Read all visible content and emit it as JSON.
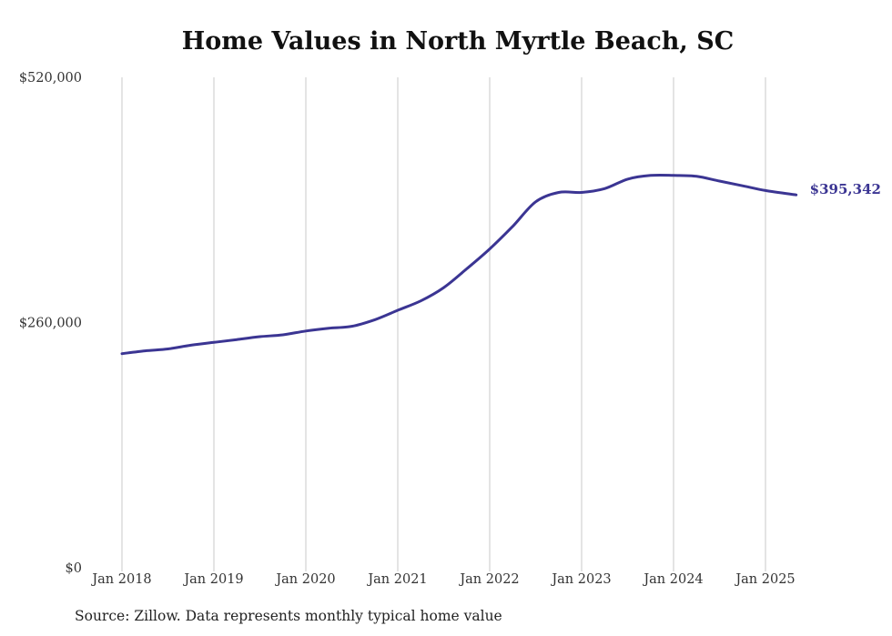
{
  "chart_data": {
    "type": "line",
    "title": "Home Values in North Myrtle Beach, SC",
    "xlabel": "",
    "ylabel": "",
    "ylim": [
      0,
      520000
    ],
    "y_ticks": [
      0,
      260000,
      520000
    ],
    "y_tick_labels": [
      "$0",
      "$260,000",
      "$520,000"
    ],
    "x_ticks": [
      "Jan 2018",
      "Jan 2019",
      "Jan 2020",
      "Jan 2021",
      "Jan 2022",
      "Jan 2023",
      "Jan 2024",
      "Jan 2025"
    ],
    "x_range": [
      "2018-01",
      "2025-05"
    ],
    "grid": {
      "vertical": true,
      "horizontal": false
    },
    "series": [
      {
        "color": "#3b3593",
        "points": [
          {
            "x": "2018-01",
            "y": 227000
          },
          {
            "x": "2018-04",
            "y": 230000
          },
          {
            "x": "2018-07",
            "y": 232000
          },
          {
            "x": "2018-10",
            "y": 236000
          },
          {
            "x": "2019-01",
            "y": 239000
          },
          {
            "x": "2019-04",
            "y": 242000
          },
          {
            "x": "2019-07",
            "y": 245000
          },
          {
            "x": "2019-10",
            "y": 247000
          },
          {
            "x": "2020-01",
            "y": 251000
          },
          {
            "x": "2020-04",
            "y": 254000
          },
          {
            "x": "2020-07",
            "y": 256000
          },
          {
            "x": "2020-10",
            "y": 263000
          },
          {
            "x": "2021-01",
            "y": 273000
          },
          {
            "x": "2021-04",
            "y": 283000
          },
          {
            "x": "2021-07",
            "y": 297000
          },
          {
            "x": "2021-10",
            "y": 317000
          },
          {
            "x": "2022-01",
            "y": 338000
          },
          {
            "x": "2022-04",
            "y": 362000
          },
          {
            "x": "2022-07",
            "y": 388000
          },
          {
            "x": "2022-10",
            "y": 398000
          },
          {
            "x": "2023-01",
            "y": 398000
          },
          {
            "x": "2023-04",
            "y": 402000
          },
          {
            "x": "2023-07",
            "y": 412000
          },
          {
            "x": "2023-10",
            "y": 416000
          },
          {
            "x": "2024-01",
            "y": 416000
          },
          {
            "x": "2024-04",
            "y": 415000
          },
          {
            "x": "2024-07",
            "y": 410000
          },
          {
            "x": "2024-10",
            "y": 405000
          },
          {
            "x": "2025-01",
            "y": 400000
          },
          {
            "x": "2025-05",
            "y": 395342
          }
        ]
      }
    ],
    "end_label": "$395,342",
    "source": "Source: Zillow. Data represents monthly typical home value"
  },
  "colors": {
    "line": "#3b3593",
    "grid": "#c8c8c8",
    "text": "#333333"
  }
}
